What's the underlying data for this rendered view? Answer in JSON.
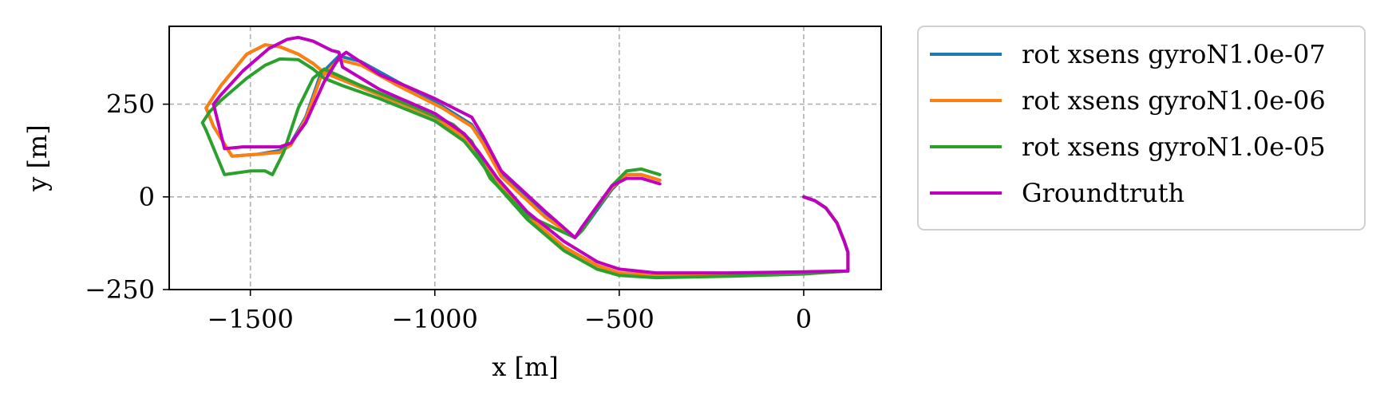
{
  "chart_data": {
    "type": "line",
    "title": "",
    "xlabel": "x [m]",
    "ylabel": "y [m]",
    "xlim": [
      -1720,
      210
    ],
    "ylim": [
      -250,
      460
    ],
    "xticks": [
      {
        "value": -1500,
        "label": "−1500"
      },
      {
        "value": -1000,
        "label": "−1000"
      },
      {
        "value": -500,
        "label": "−500"
      },
      {
        "value": 0,
        "label": "0"
      }
    ],
    "yticks": [
      {
        "value": -250,
        "label": "−250"
      },
      {
        "value": 0,
        "label": "0"
      },
      {
        "value": 250,
        "label": "250"
      }
    ],
    "grid": true,
    "legend_position": "outside-right-top",
    "series": [
      {
        "name": "rot xsens gyroN1.0e-07",
        "color": "#1f77b4",
        "x": [
          0,
          30,
          60,
          90,
          110,
          120,
          120,
          0,
          -200,
          -400,
          -500,
          -560,
          -650,
          -750,
          -830,
          -880,
          -920,
          -1000,
          -1150,
          -1250,
          -1300,
          -1330,
          -1370,
          -1420,
          -1460,
          -1510,
          -1580,
          -1610,
          -1620,
          -1600,
          -1550,
          -1480,
          -1420,
          -1390,
          -1350,
          -1310,
          -1260,
          -1200,
          -1100,
          -980,
          -900,
          -870,
          -820,
          -700,
          -620,
          -600,
          -520,
          -480,
          -440,
          -390
        ],
        "y": [
          0,
          -10,
          -30,
          -70,
          -120,
          -150,
          -200,
          -205,
          -210,
          -212,
          -205,
          -185,
          -135,
          -50,
          40,
          110,
          160,
          215,
          275,
          315,
          335,
          360,
          385,
          405,
          410,
          385,
          300,
          255,
          240,
          190,
          110,
          115,
          125,
          145,
          215,
          330,
          380,
          365,
          310,
          245,
          195,
          150,
          60,
          -50,
          -110,
          -90,
          20,
          60,
          60,
          45
        ]
      },
      {
        "name": "rot xsens gyroN1.0e-06",
        "color": "#ff7f0e",
        "x": [
          0,
          30,
          60,
          90,
          110,
          120,
          120,
          0,
          -200,
          -400,
          -500,
          -560,
          -650,
          -750,
          -830,
          -880,
          -920,
          -1000,
          -1150,
          -1250,
          -1300,
          -1330,
          -1370,
          -1420,
          -1460,
          -1510,
          -1580,
          -1610,
          -1620,
          -1600,
          -1550,
          -1480,
          -1420,
          -1390,
          -1350,
          -1310,
          -1260,
          -1200,
          -1100,
          -980,
          -900,
          -870,
          -820,
          -700,
          -620,
          -600,
          -520,
          -480,
          -440,
          -390
        ],
        "y": [
          0,
          -10,
          -30,
          -70,
          -120,
          -150,
          -200,
          -205,
          -210,
          -212,
          -205,
          -185,
          -135,
          -50,
          40,
          110,
          160,
          215,
          275,
          315,
          335,
          360,
          385,
          405,
          410,
          385,
          300,
          255,
          240,
          190,
          110,
          115,
          120,
          140,
          210,
          320,
          370,
          355,
          300,
          240,
          190,
          145,
          55,
          -55,
          -110,
          -85,
          25,
          60,
          60,
          45
        ]
      },
      {
        "name": "rot xsens gyroN1.0e-05",
        "color": "#2ca02c",
        "x": [
          0,
          30,
          60,
          90,
          110,
          120,
          120,
          0,
          -200,
          -400,
          -500,
          -560,
          -650,
          -750,
          -830,
          -880,
          -920,
          -1000,
          -1150,
          -1250,
          -1300,
          -1330,
          -1370,
          -1420,
          -1460,
          -1510,
          -1580,
          -1610,
          -1630,
          -1620,
          -1570,
          -1500,
          -1460,
          -1440,
          -1410,
          -1370,
          -1330,
          -1300,
          -1200,
          -1050,
          -950,
          -900,
          -850,
          -750,
          -620,
          -600,
          -520,
          -480,
          -440,
          -390
        ],
        "y": [
          0,
          -10,
          -30,
          -70,
          -120,
          -150,
          -200,
          -208,
          -214,
          -218,
          -212,
          -195,
          -145,
          -60,
          30,
          100,
          150,
          205,
          265,
          300,
          320,
          345,
          370,
          372,
          355,
          320,
          260,
          230,
          200,
          180,
          60,
          70,
          70,
          60,
          120,
          240,
          320,
          345,
          300,
          240,
          195,
          150,
          50,
          -50,
          -110,
          -90,
          30,
          70,
          75,
          60
        ]
      },
      {
        "name": "Groundtruth",
        "color": "#bf00bf",
        "x": [
          0,
          30,
          60,
          90,
          110,
          120,
          120,
          0,
          -200,
          -400,
          -500,
          -560,
          -650,
          -750,
          -830,
          -880,
          -920,
          -1000,
          -1150,
          -1250,
          -1260,
          -1280,
          -1330,
          -1370,
          -1400,
          -1450,
          -1520,
          -1580,
          -1600,
          -1570,
          -1520,
          -1450,
          -1420,
          -1390,
          -1350,
          -1300,
          -1260,
          -1240,
          -1150,
          -1000,
          -900,
          -870,
          -820,
          -700,
          -620,
          -600,
          -520,
          -480,
          -440,
          -390
        ],
        "y": [
          0,
          -10,
          -30,
          -70,
          -120,
          -150,
          -200,
          -202,
          -205,
          -205,
          -195,
          -175,
          -120,
          -40,
          50,
          120,
          170,
          225,
          290,
          350,
          390,
          395,
          420,
          430,
          425,
          400,
          340,
          275,
          250,
          130,
          135,
          135,
          135,
          145,
          200,
          310,
          375,
          390,
          330,
          265,
          215,
          165,
          70,
          -40,
          -110,
          -80,
          30,
          50,
          50,
          35
        ]
      }
    ]
  }
}
